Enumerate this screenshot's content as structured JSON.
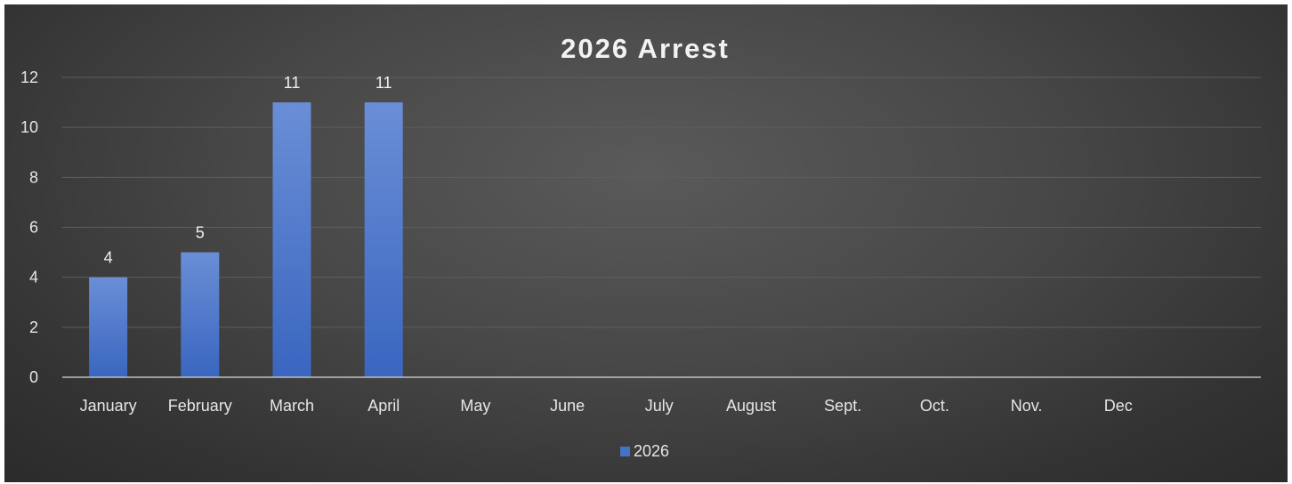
{
  "chart_data": {
    "type": "bar",
    "title": "2026 Arrest",
    "xlabel": "",
    "ylabel": "",
    "categories": [
      "January",
      "February",
      "March",
      "April",
      "May",
      "June",
      "July",
      "August",
      "Sept.",
      "Oct.",
      "Nov.",
      "Dec"
    ],
    "series": [
      {
        "name": "2026",
        "values": [
          4,
          5,
          11,
          11,
          null,
          null,
          null,
          null,
          null,
          null,
          null,
          null
        ],
        "color": "#4472c4"
      }
    ],
    "ylim": [
      0,
      12
    ],
    "yticks": [
      "0",
      "2",
      "4",
      "6",
      "8",
      "10",
      "12"
    ],
    "data_labels": [
      "4",
      "5",
      "11",
      "11"
    ],
    "grid": true,
    "legend": "bottom-center"
  },
  "colors": {
    "background": "#404040",
    "bar": "#4472c4",
    "gridline": "#5e5e5e",
    "axis": "#bfbfbf",
    "text": "#e6e6e6"
  }
}
